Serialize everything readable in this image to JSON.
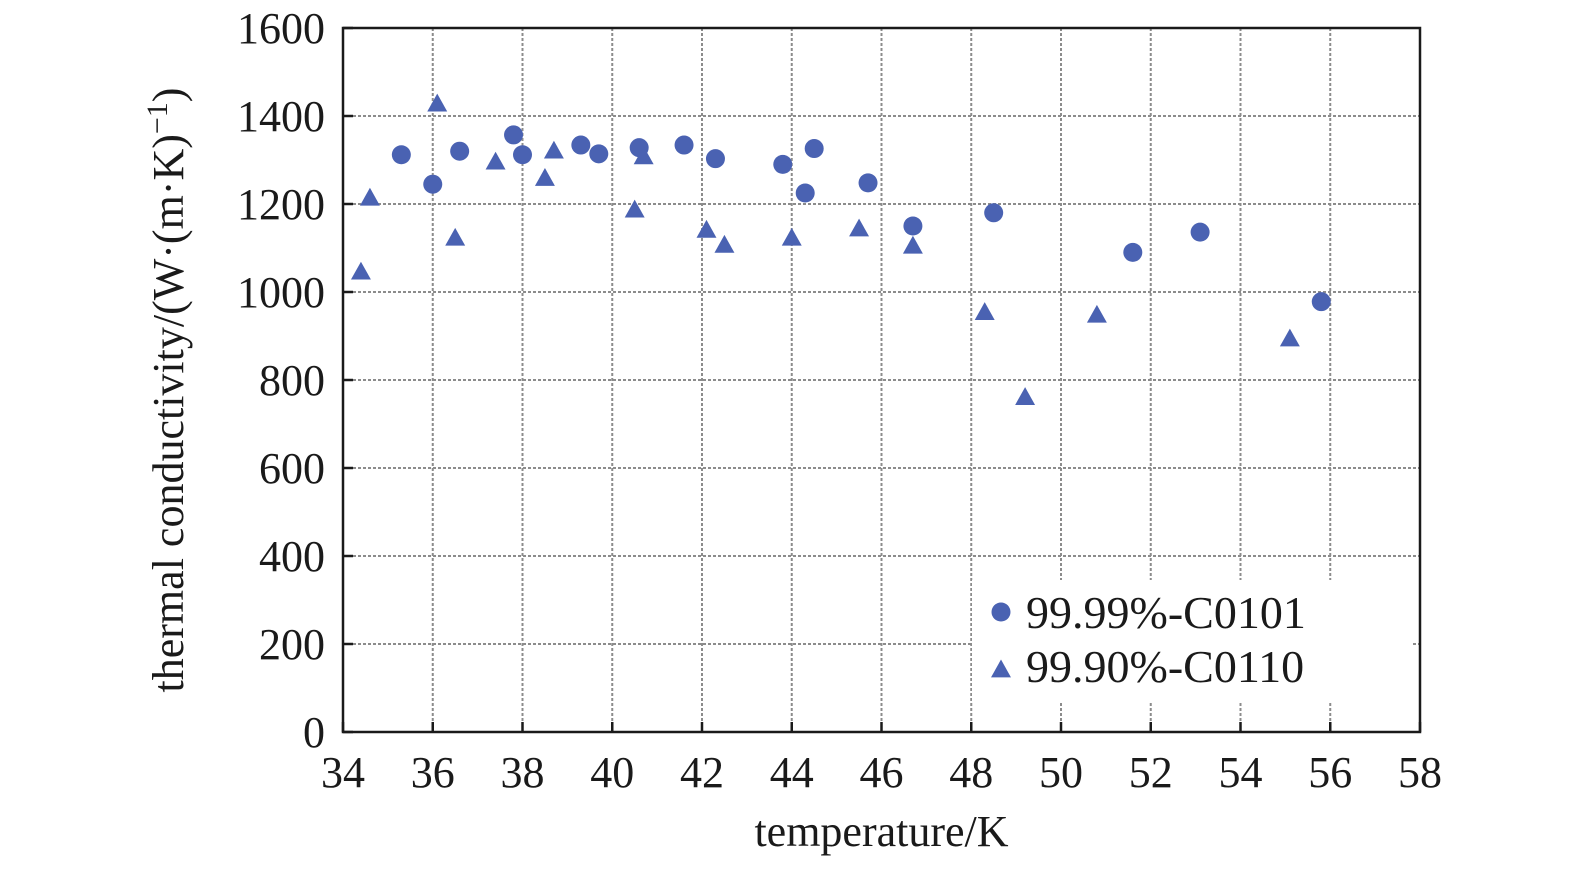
{
  "chart_data": {
    "type": "scatter",
    "xlabel": "temperature/K",
    "ylabel": "thermal conductivity/(W·(m·K)",
    "ylabel_sup": "−1",
    "ylabel_close": ")",
    "xlim": [
      34,
      58
    ],
    "ylim": [
      0,
      1600
    ],
    "xticks": [
      34,
      36,
      38,
      40,
      42,
      44,
      46,
      48,
      50,
      52,
      54,
      56,
      58
    ],
    "yticks": [
      0,
      200,
      400,
      600,
      800,
      1000,
      1200,
      1400,
      1600
    ],
    "grid": true,
    "legend_position": "bottom-right",
    "colors": {
      "marker": "#4a62b2",
      "grid": "#8c8c8c",
      "axis": "#1a1a1a"
    },
    "series": [
      {
        "name": "99.99%-C0101",
        "marker": "circle",
        "points": [
          [
            35.3,
            1312
          ],
          [
            36.0,
            1245
          ],
          [
            36.6,
            1320
          ],
          [
            37.8,
            1357
          ],
          [
            38.0,
            1312
          ],
          [
            39.3,
            1334
          ],
          [
            39.7,
            1314
          ],
          [
            40.6,
            1328
          ],
          [
            41.6,
            1334
          ],
          [
            42.3,
            1303
          ],
          [
            43.8,
            1290
          ],
          [
            44.3,
            1225
          ],
          [
            44.5,
            1326
          ],
          [
            45.7,
            1248
          ],
          [
            46.7,
            1150
          ],
          [
            48.5,
            1180
          ],
          [
            51.6,
            1090
          ],
          [
            53.1,
            1136
          ],
          [
            55.8,
            978
          ]
        ]
      },
      {
        "name": "99.90%-C0110",
        "marker": "triangle",
        "points": [
          [
            34.4,
            1045
          ],
          [
            34.6,
            1213
          ],
          [
            36.1,
            1427
          ],
          [
            36.5,
            1122
          ],
          [
            37.4,
            1295
          ],
          [
            38.5,
            1258
          ],
          [
            38.7,
            1320
          ],
          [
            40.5,
            1186
          ],
          [
            40.7,
            1307
          ],
          [
            42.1,
            1140
          ],
          [
            42.5,
            1106
          ],
          [
            44.0,
            1122
          ],
          [
            45.5,
            1143
          ],
          [
            46.7,
            1104
          ],
          [
            48.3,
            953
          ],
          [
            49.2,
            760
          ],
          [
            50.8,
            947
          ],
          [
            55.1,
            893
          ]
        ]
      }
    ]
  }
}
